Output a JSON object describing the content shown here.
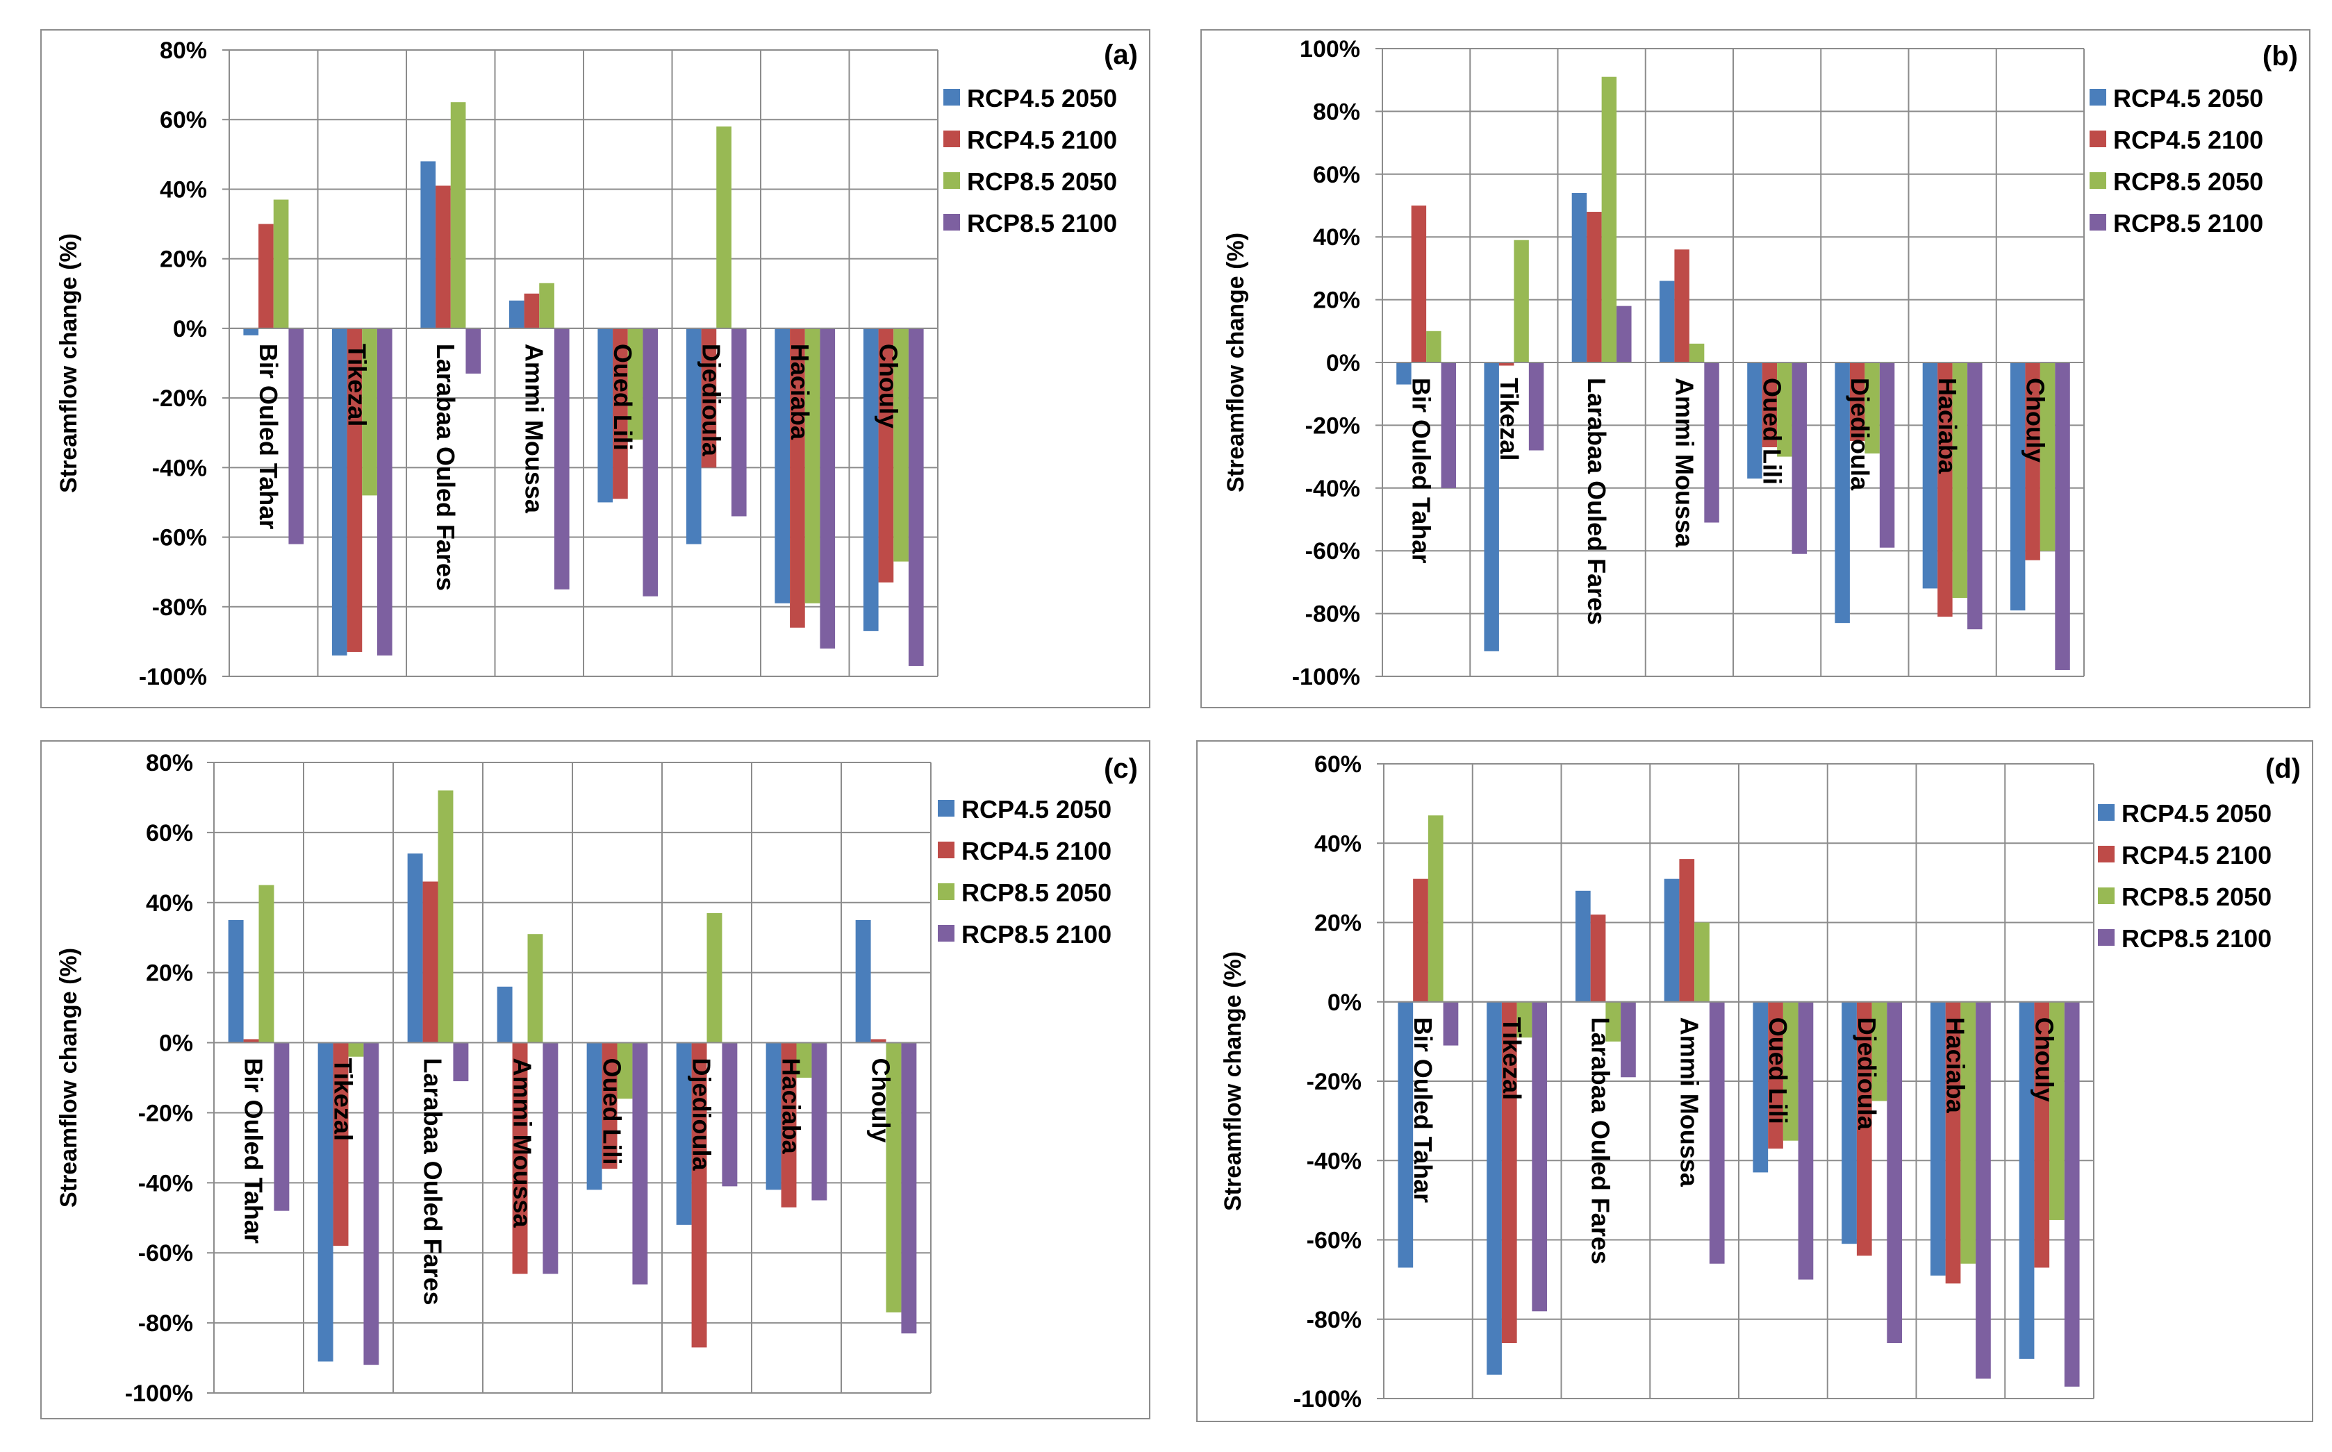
{
  "colors": {
    "RCP4.5 2050": "#4a7ebb",
    "RCP4.5 2100": "#be4b48",
    "RCP8.5 2050": "#98b954",
    "RCP8.5 2100": "#7d60a0"
  },
  "chart_data": [
    {
      "type": "bar",
      "panel_label": "(a)",
      "ylabel": "Streamflow change (%)",
      "ylim": [
        -100,
        80
      ],
      "yticks": [
        "80%",
        "60%",
        "40%",
        "20%",
        "0%",
        "-20%",
        "-40%",
        "-60%",
        "-80%",
        "-100%"
      ],
      "categories": [
        "Bir Ouled Tahar",
        "Tikezal",
        "Larabaa Ouled Fares",
        "Ammi Moussa",
        "Oued Lili",
        "Djedioula",
        "Haciaba",
        "Chouly"
      ],
      "legend": [
        "RCP4.5 2050",
        "RCP4.5 2100",
        "RCP8.5 2050",
        "RCP8.5 2100"
      ],
      "series": [
        {
          "name": "RCP4.5 2050",
          "values": [
            -2,
            -94,
            48,
            8,
            -50,
            -62,
            -79,
            -87
          ]
        },
        {
          "name": "RCP4.5 2100",
          "values": [
            30,
            -93,
            41,
            10,
            -49,
            -40,
            -86,
            -73
          ]
        },
        {
          "name": "RCP8.5 2050",
          "values": [
            37,
            -48,
            65,
            13,
            -32,
            58,
            -79,
            -67
          ]
        },
        {
          "name": "RCP8.5 2100",
          "values": [
            -62,
            -94,
            -13,
            -75,
            -77,
            -54,
            -92,
            -97
          ]
        }
      ]
    },
    {
      "type": "bar",
      "panel_label": "(b)",
      "ylabel": "Streamflow change (%)",
      "ylim": [
        -100,
        100
      ],
      "yticks": [
        "100%",
        "80%",
        "60%",
        "40%",
        "20%",
        "0%",
        "-20%",
        "-40%",
        "-60%",
        "-80%",
        "-100%"
      ],
      "categories": [
        "Bir Ouled Tahar",
        "Tikezal",
        "Larabaa Ouled Fares",
        "Ammi Moussa",
        "Oued Lili",
        "Djedioula",
        "Haciaba",
        "Chouly"
      ],
      "legend": [
        "RCP4.5 2050",
        "RCP4.5 2100",
        "RCP8.5 2050",
        "RCP8.5 2100"
      ],
      "series": [
        {
          "name": "RCP4.5 2050",
          "values": [
            -7,
            -92,
            54,
            26,
            -37,
            -83,
            -72,
            -79
          ]
        },
        {
          "name": "RCP4.5 2100",
          "values": [
            50,
            -1,
            48,
            36,
            -27,
            -25,
            -81,
            -63
          ]
        },
        {
          "name": "RCP8.5 2050",
          "values": [
            10,
            39,
            91,
            6,
            -30,
            -29,
            -75,
            -60
          ]
        },
        {
          "name": "RCP8.5 2100",
          "values": [
            -40,
            -28,
            18,
            -51,
            -61,
            -59,
            -85,
            -98
          ]
        }
      ]
    },
    {
      "type": "bar",
      "panel_label": "(c)",
      "ylabel": "Streamflow change (%)",
      "ylim": [
        -100,
        80
      ],
      "yticks": [
        "80%",
        "60%",
        "40%",
        "20%",
        "0%",
        "-20%",
        "-40%",
        "-60%",
        "-80%",
        "-100%"
      ],
      "categories": [
        "Bir Ouled Tahar",
        "Tikezal",
        "Larabaa Ouled Fares",
        "Ammi Moussa",
        "Oued Lili",
        "Djedioula",
        "Haciaba",
        "Chouly"
      ],
      "legend": [
        "RCP4.5 2050",
        "RCP4.5 2100",
        "RCP8.5 2050",
        "RCP8.5 2100"
      ],
      "series": [
        {
          "name": "RCP4.5 2050",
          "values": [
            35,
            -91,
            54,
            16,
            -42,
            -52,
            -42,
            35
          ]
        },
        {
          "name": "RCP4.5 2100",
          "values": [
            1,
            -58,
            46,
            -66,
            -36,
            -87,
            -47,
            1
          ]
        },
        {
          "name": "RCP8.5 2050",
          "values": [
            45,
            -4,
            72,
            31,
            -16,
            37,
            -10,
            -77
          ]
        },
        {
          "name": "RCP8.5 2100",
          "values": [
            -48,
            -92,
            -11,
            -66,
            -69,
            -41,
            -45,
            -83
          ]
        }
      ]
    },
    {
      "type": "bar",
      "panel_label": "(d)",
      "ylabel": "Streamflow change (%)",
      "ylim": [
        -100,
        60
      ],
      "yticks": [
        "60%",
        "40%",
        "20%",
        "0%",
        "-20%",
        "-40%",
        "-60%",
        "-80%",
        "-100%"
      ],
      "categories": [
        "Bir Ouled Tahar",
        "Tikezal",
        "Larabaa Ouled Fares",
        "Ammi Moussa",
        "Oued Lili",
        "Djedioula",
        "Haciaba",
        "Chouly"
      ],
      "legend": [
        "RCP4.5 2050",
        "RCP4.5 2100",
        "RCP8.5 2050",
        "RCP8.5 2100"
      ],
      "series": [
        {
          "name": "RCP4.5 2050",
          "values": [
            -67,
            -94,
            28,
            31,
            -43,
            -61,
            -69,
            -90
          ]
        },
        {
          "name": "RCP4.5 2100",
          "values": [
            31,
            -86,
            22,
            36,
            -37,
            -64,
            -71,
            -67
          ]
        },
        {
          "name": "RCP8.5 2050",
          "values": [
            47,
            -9,
            -10,
            20,
            -35,
            -25,
            -66,
            -55
          ]
        },
        {
          "name": "RCP8.5 2100",
          "values": [
            -11,
            -78,
            -19,
            -66,
            -70,
            -86,
            -95,
            -97
          ]
        }
      ]
    }
  ]
}
